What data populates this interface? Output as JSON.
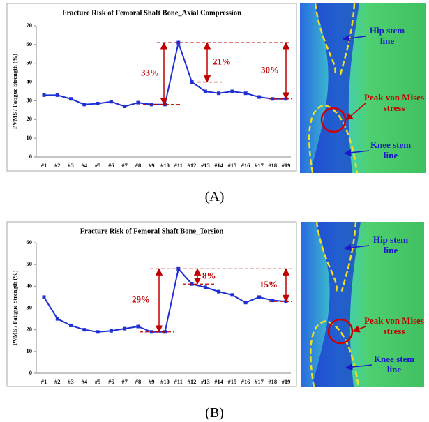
{
  "chart_data": [
    {
      "type": "line",
      "title": "Fracture Risk of Femoral Shaft Bone_Axial Compression",
      "y_label": "PVMS / Fatigue Strength (%)",
      "categories": [
        "#1",
        "#2",
        "#3",
        "#4",
        "#5",
        "#6",
        "#7",
        "#8",
        "#9",
        "#10",
        "#11",
        "#12",
        "#13",
        "#14",
        "#15",
        "#16",
        "#17",
        "#18",
        "#19"
      ],
      "values": [
        33,
        33,
        31,
        28,
        28.5,
        29.5,
        27,
        29,
        28,
        28,
        61,
        40,
        35,
        34,
        35,
        34,
        32,
        31,
        31
      ],
      "color": "#1f2fd6",
      "ylim": [
        0,
        70
      ],
      "yticks": [
        0,
        10,
        20,
        30,
        40,
        50,
        60,
        70
      ],
      "annotations": [
        "33%",
        "21%",
        "30%"
      ],
      "panel_label": "(A)",
      "image_labels": [
        "Hip stem line",
        "Peak von Mises stress",
        "Knee stem line"
      ]
    },
    {
      "type": "line",
      "title": "Fracture Risk of Femoral Shaft Bone_Torsion",
      "y_label": "PVMS / Fatigue Strength (%)",
      "categories": [
        "#1",
        "#2",
        "#3",
        "#4",
        "#5",
        "#6",
        "#7",
        "#8",
        "#9",
        "#10",
        "#11",
        "#12",
        "#13",
        "#14",
        "#15",
        "#16",
        "#17",
        "#18",
        "#19"
      ],
      "values": [
        35,
        25,
        22,
        20,
        19,
        19.5,
        20.5,
        21.5,
        19,
        19,
        48,
        41,
        39.5,
        37.5,
        36,
        32.5,
        35,
        33.5,
        33
      ],
      "color": "#1f2fd6",
      "ylim": [
        0,
        60
      ],
      "yticks": [
        0,
        10,
        20,
        30,
        40,
        50,
        60
      ],
      "annotations": [
        "29%",
        "8%",
        "15%"
      ],
      "panel_label": "(B)",
      "image_labels": [
        "Hip stem line",
        "Peak von Mises stress",
        "Knee stem line"
      ]
    }
  ]
}
